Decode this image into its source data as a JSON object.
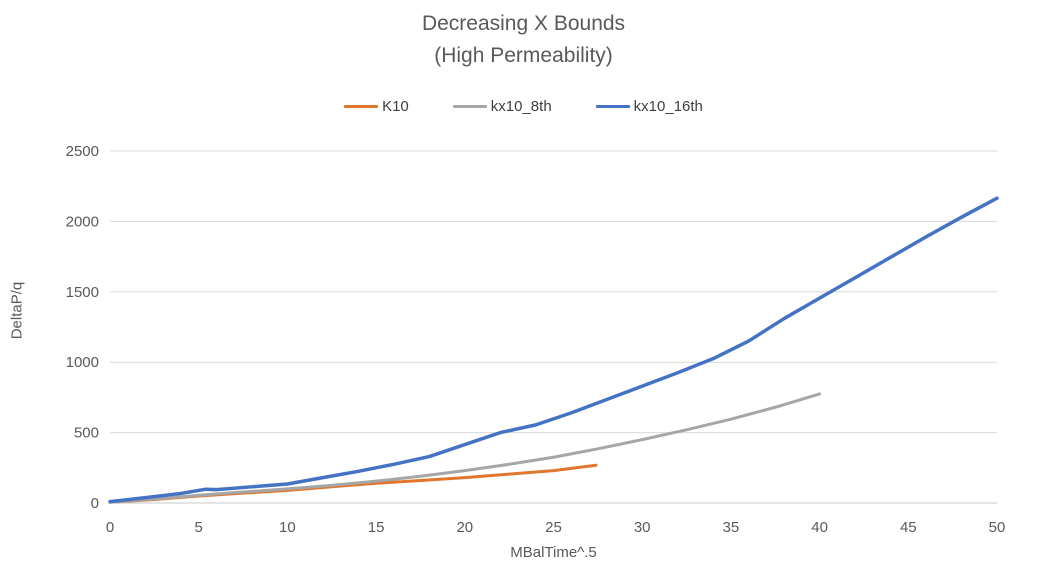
{
  "chart": {
    "title_line1": "Decreasing X Bounds",
    "title_line2": "(High Permeability)",
    "xlabel": "MBalTime^.5",
    "ylabel": "DeltaP/q"
  },
  "chart_data": {
    "type": "line",
    "title": "Decreasing X Bounds",
    "subtitle": "(High Permeability)",
    "xlabel": "MBalTime^.5",
    "ylabel": "DeltaP/q",
    "xlim": [
      0,
      50
    ],
    "ylim": [
      0,
      2500
    ],
    "x_ticks": [
      0,
      5,
      10,
      15,
      20,
      25,
      30,
      35,
      40,
      45,
      50
    ],
    "y_ticks": [
      0,
      500,
      1000,
      1500,
      2000,
      2500
    ],
    "grid": "horizontal",
    "gridline_color": "#d9d9d9",
    "axis_line_color": "#c8c8c8",
    "legend_position": "top",
    "series": [
      {
        "name": "K10",
        "color": "#e1762c",
        "stroke_width": 3,
        "x": [
          0,
          2.5,
          5,
          7.5,
          10,
          12.5,
          15,
          17.5,
          20,
          22.5,
          25,
          27.4
        ],
        "y": [
          5,
          25,
          50,
          70,
          90,
          115,
          140,
          160,
          180,
          205,
          230,
          268
        ]
      },
      {
        "name": "kx10_8th",
        "color": "#a6a6a6",
        "stroke_width": 3,
        "x": [
          0,
          2.5,
          5,
          7.5,
          10,
          12.5,
          15,
          17.5,
          20,
          22.5,
          25,
          27.5,
          30,
          32.5,
          35,
          37.5,
          40
        ],
        "y": [
          5,
          28,
          55,
          78,
          100,
          125,
          155,
          190,
          230,
          275,
          325,
          385,
          450,
          520,
          595,
          680,
          775
        ]
      },
      {
        "name": "kx10_16th",
        "color": "#4472c4",
        "stroke_width": 3.5,
        "x": [
          0,
          2,
          4,
          5.4,
          6,
          8,
          10,
          12,
          14,
          16,
          18,
          20,
          22,
          24,
          26,
          28,
          30,
          32,
          34,
          36,
          38,
          40,
          42,
          44,
          46,
          48,
          50
        ],
        "y": [
          10,
          38,
          68,
          98,
          95,
          115,
          135,
          180,
          225,
          275,
          330,
          415,
          500,
          555,
          640,
          735,
          830,
          925,
          1025,
          1150,
          1310,
          1455,
          1600,
          1745,
          1890,
          2030,
          2165
        ]
      }
    ]
  }
}
